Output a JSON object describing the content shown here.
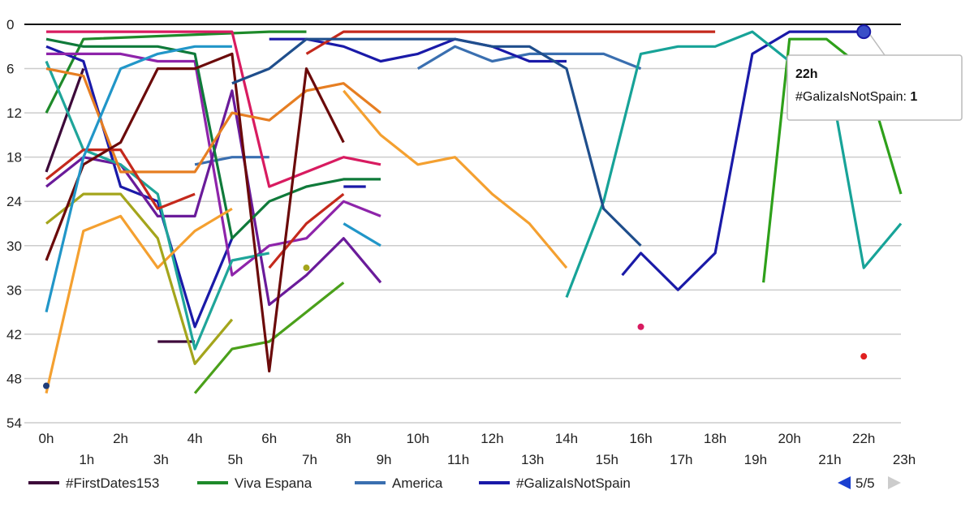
{
  "chart_data": {
    "type": "line",
    "title": "",
    "xlabel": "",
    "ylabel": "",
    "y_axis": {
      "direction": "inverted",
      "range": [
        0,
        54
      ],
      "ticks": [
        "0",
        "6",
        "12",
        "18",
        "24",
        "30",
        "36",
        "42",
        "48",
        "54"
      ]
    },
    "x_axis": {
      "ticks": [
        "0h",
        "1h",
        "2h",
        "3h",
        "4h",
        "5h",
        "6h",
        "7h",
        "8h",
        "9h",
        "10h",
        "11h",
        "12h",
        "13h",
        "14h",
        "15h",
        "16h",
        "17h",
        "18h",
        "19h",
        "20h",
        "21h",
        "22h",
        "23h"
      ]
    },
    "grid": true,
    "legend": {
      "position": "bottom-left",
      "entries": [
        {
          "label": "#FirstDates153",
          "color": "#3d0a3a"
        },
        {
          "label": "Viva Espana",
          "color": "#1e8a2a"
        },
        {
          "label": "America",
          "color": "#3a6fb0"
        },
        {
          "label": "#GalizaIsNotSpain",
          "color": "#1a1aa8"
        }
      ],
      "pager": "5/5"
    },
    "tooltip": {
      "title": "22h",
      "series": "#GalizaIsNotSpain",
      "value_label": "1",
      "x": "22h",
      "y": 1
    },
    "series": [
      {
        "name": "#FirstDates153",
        "color": "#3d0a3a",
        "points": [
          [
            0,
            20
          ],
          [
            1,
            6
          ]
        ]
      },
      {
        "name": "",
        "color": "#3d0a3a",
        "points": [
          [
            3,
            43
          ],
          [
            4,
            43
          ]
        ]
      },
      {
        "name": "Viva Espana",
        "color": "#1e8a2a",
        "points": [
          [
            0,
            12
          ],
          [
            1,
            2
          ],
          [
            6,
            1
          ],
          [
            7,
            1
          ]
        ]
      },
      {
        "name": "America",
        "color": "#3a6fb0",
        "points": [
          [
            10,
            6
          ],
          [
            11,
            3
          ],
          [
            12,
            5
          ],
          [
            13,
            4
          ],
          [
            14,
            4
          ],
          [
            15,
            4
          ],
          [
            16,
            6
          ]
        ]
      },
      {
        "name": "",
        "color": "#3a6fb0",
        "points": [
          [
            4,
            19
          ],
          [
            5,
            18
          ],
          [
            6,
            18
          ]
        ]
      },
      {
        "name": "#GalizaIsNotSpain",
        "color": "#1a1aa8",
        "points": [
          [
            0,
            3
          ],
          [
            1,
            5
          ],
          [
            2,
            22
          ],
          [
            3,
            24
          ],
          [
            4,
            41
          ],
          [
            5,
            29
          ]
        ]
      },
      {
        "name": "",
        "color": "#1a1aa8",
        "points": [
          [
            6,
            2
          ],
          [
            7,
            2
          ],
          [
            8,
            3
          ],
          [
            9,
            5
          ],
          [
            10,
            4
          ],
          [
            11,
            2
          ],
          [
            12,
            3
          ],
          [
            13,
            5
          ],
          [
            14,
            5
          ]
        ]
      },
      {
        "name": "",
        "color": "#1a1aa8",
        "points": [
          [
            15.5,
            34
          ],
          [
            16,
            31
          ],
          [
            17,
            36
          ],
          [
            18,
            31
          ],
          [
            19,
            4
          ],
          [
            20,
            1
          ],
          [
            21,
            1
          ],
          [
            22,
            1
          ]
        ]
      },
      {
        "name": "",
        "color": "#1a1aa8",
        "points": [
          [
            8,
            22
          ],
          [
            8.6,
            22
          ]
        ]
      },
      {
        "name": "",
        "color": "#d81b60",
        "points": [
          [
            0,
            1
          ],
          [
            5,
            1
          ],
          [
            6,
            22
          ],
          [
            7,
            20
          ],
          [
            8,
            18
          ],
          [
            9,
            19
          ]
        ]
      },
      {
        "name": "",
        "color": "#8e24aa",
        "points": [
          [
            0,
            4
          ],
          [
            1,
            4
          ],
          [
            2,
            4
          ],
          [
            3,
            5
          ],
          [
            4,
            5
          ],
          [
            5,
            34
          ],
          [
            6,
            30
          ],
          [
            7,
            29
          ],
          [
            8,
            24
          ],
          [
            9,
            26
          ]
        ]
      },
      {
        "name": "",
        "color": "#6a1b9a",
        "points": [
          [
            0,
            22
          ],
          [
            1,
            18
          ],
          [
            2,
            19
          ],
          [
            3,
            26
          ],
          [
            4,
            26
          ],
          [
            5,
            9
          ],
          [
            6,
            38
          ],
          [
            7,
            34
          ],
          [
            8,
            29
          ],
          [
            9,
            35
          ]
        ]
      },
      {
        "name": "",
        "color": "#0f7a3a",
        "points": [
          [
            0,
            2
          ],
          [
            1,
            3
          ],
          [
            3,
            3
          ],
          [
            4,
            4
          ],
          [
            5,
            29
          ],
          [
            6,
            24
          ],
          [
            7,
            22
          ],
          [
            8,
            21
          ],
          [
            9,
            21
          ]
        ]
      },
      {
        "name": "",
        "color": "#4aa01a",
        "points": [
          [
            4,
            50
          ],
          [
            5,
            44
          ],
          [
            6,
            43
          ],
          [
            7,
            39
          ],
          [
            8,
            35
          ]
        ]
      },
      {
        "name": "",
        "color": "#2ea01a",
        "points": [
          [
            19.3,
            35
          ],
          [
            20,
            2
          ],
          [
            21,
            2
          ],
          [
            22,
            6
          ],
          [
            23,
            23
          ]
        ]
      },
      {
        "name": "",
        "color": "#1fa59a",
        "points": [
          [
            0,
            5
          ],
          [
            1,
            17
          ],
          [
            2,
            19
          ],
          [
            3,
            23
          ],
          [
            4,
            44
          ],
          [
            5,
            32
          ],
          [
            6,
            31
          ]
        ]
      },
      {
        "name": "",
        "color": "#2196c8",
        "points": [
          [
            8,
            27
          ],
          [
            9,
            30
          ]
        ]
      },
      {
        "name": "",
        "color": "#17a398",
        "points": [
          [
            14,
            37
          ],
          [
            15,
            24
          ],
          [
            16,
            4
          ],
          [
            17,
            3
          ],
          [
            18,
            3
          ],
          [
            19,
            1
          ],
          [
            20,
            5
          ],
          [
            21,
            5
          ],
          [
            22,
            33
          ],
          [
            23,
            27
          ]
        ]
      },
      {
        "name": "",
        "color": "#e67e22",
        "points": [
          [
            0,
            6
          ],
          [
            1,
            7
          ],
          [
            2,
            20
          ],
          [
            3,
            20
          ],
          [
            4,
            20
          ],
          [
            5,
            12
          ],
          [
            6,
            13
          ],
          [
            7,
            9
          ],
          [
            8,
            8
          ],
          [
            9,
            12
          ]
        ]
      },
      {
        "name": "",
        "color": "#f4a030",
        "points": [
          [
            0,
            50
          ],
          [
            1,
            28
          ],
          [
            2,
            26
          ],
          [
            3,
            33
          ],
          [
            4,
            28
          ],
          [
            5,
            25
          ]
        ]
      },
      {
        "name": "",
        "color": "#f4a030",
        "points": [
          [
            8,
            9
          ],
          [
            9,
            15
          ],
          [
            10,
            19
          ],
          [
            11,
            18
          ],
          [
            12,
            23
          ],
          [
            13,
            27
          ],
          [
            14,
            33
          ]
        ]
      },
      {
        "name": "",
        "color": "#a4a51c",
        "points": [
          [
            0,
            27
          ],
          [
            1,
            23
          ],
          [
            2,
            23
          ],
          [
            3,
            29
          ],
          [
            4,
            46
          ],
          [
            5,
            40
          ]
        ]
      },
      {
        "name": "",
        "color": "#c4291c",
        "points": [
          [
            0,
            21
          ],
          [
            1,
            17
          ],
          [
            2,
            17
          ],
          [
            3,
            25
          ],
          [
            4,
            23
          ]
        ]
      },
      {
        "name": "",
        "color": "#c4291c",
        "points": [
          [
            7,
            4
          ],
          [
            8,
            1
          ],
          [
            18,
            1
          ]
        ]
      },
      {
        "name": "",
        "color": "#c4291c",
        "points": [
          [
            6,
            33
          ],
          [
            7,
            27
          ],
          [
            8,
            23
          ]
        ]
      },
      {
        "name": "",
        "color": "#6b0a0a",
        "points": [
          [
            0,
            32
          ],
          [
            1,
            19
          ],
          [
            2,
            16
          ],
          [
            3,
            6
          ],
          [
            4,
            6
          ],
          [
            5,
            4
          ],
          [
            6,
            47
          ],
          [
            7,
            6
          ],
          [
            8,
            16
          ]
        ]
      },
      {
        "name": "",
        "color": "#1f4e8c",
        "points": [
          [
            5,
            8
          ],
          [
            6,
            6
          ],
          [
            7,
            2
          ],
          [
            8,
            2
          ],
          [
            9,
            2
          ],
          [
            10,
            2
          ],
          [
            11,
            2
          ],
          [
            12,
            3
          ],
          [
            13,
            3
          ],
          [
            14,
            6
          ],
          [
            15,
            25
          ],
          [
            16,
            30
          ]
        ]
      },
      {
        "name": "",
        "color": "#2196c8",
        "points": [
          [
            0,
            39
          ],
          [
            1,
            18
          ],
          [
            2,
            6
          ],
          [
            3,
            4
          ],
          [
            4,
            3
          ],
          [
            5,
            3
          ]
        ]
      }
    ],
    "points": [
      {
        "x": 0,
        "y": 49,
        "color": "#1f3d7a"
      },
      {
        "x": 7,
        "y": 33,
        "color": "#a4a51c"
      },
      {
        "x": 16,
        "y": 41,
        "color": "#d81b60"
      },
      {
        "x": 22,
        "y": 45,
        "color": "#e02020"
      }
    ]
  }
}
